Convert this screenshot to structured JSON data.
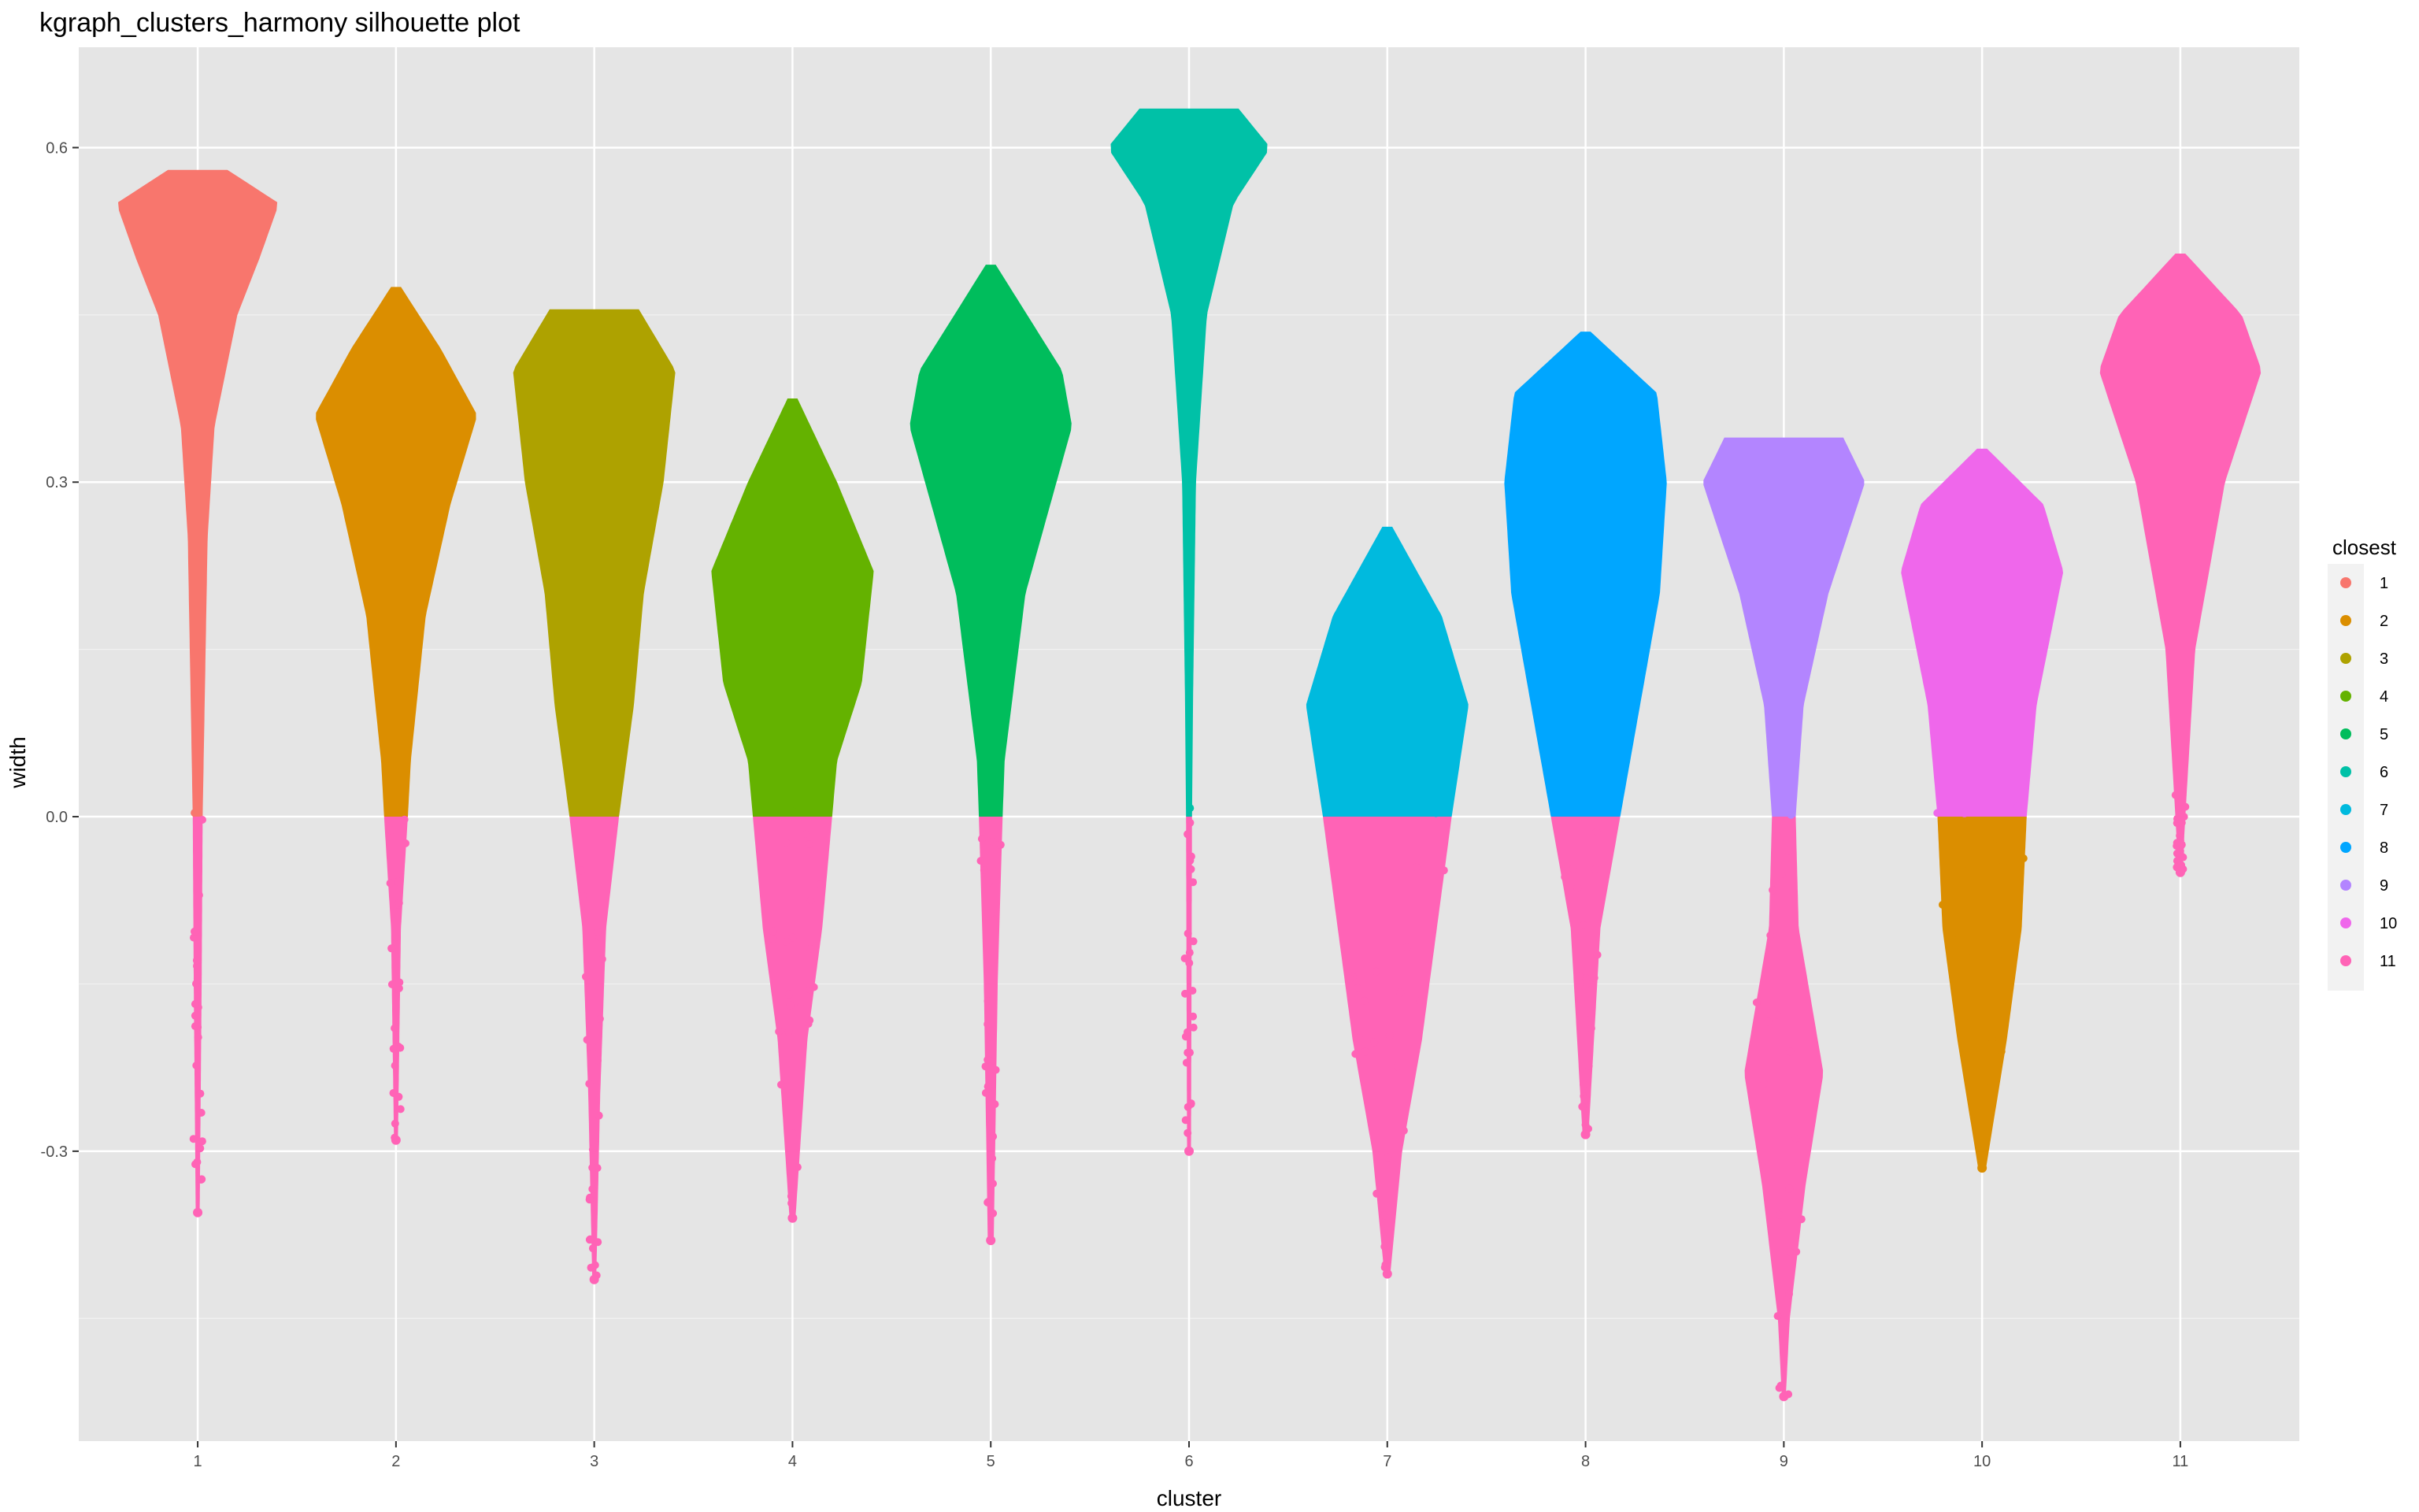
{
  "chart_data": {
    "type": "violin-beeswarm",
    "title": "kgraph_clusters_harmony silhouette plot",
    "xlabel": "cluster",
    "ylabel": "width",
    "categories": [
      "1",
      "2",
      "3",
      "4",
      "5",
      "6",
      "7",
      "8",
      "9",
      "10",
      "11"
    ],
    "ylim": [
      -0.56,
      0.69
    ],
    "yticks": [
      -0.3,
      0.0,
      0.3,
      0.6
    ],
    "ytick_labels": [
      "-0.3",
      "0.0",
      "0.3",
      "0.6"
    ],
    "grid": true,
    "legend": {
      "title": "closest",
      "position": "right",
      "entries": [
        "1",
        "2",
        "3",
        "4",
        "5",
        "6",
        "7",
        "8",
        "9",
        "10",
        "11"
      ]
    },
    "colors": {
      "1": "#F8766D",
      "2": "#DB8E00",
      "3": "#AEA200",
      "4": "#64B200",
      "5": "#00BD5C",
      "6": "#00C1A7",
      "7": "#00BADE",
      "8": "#00A6FF",
      "9": "#B385FF",
      "10": "#EF67EB",
      "11": "#FF63B6"
    },
    "clusters": [
      {
        "cluster": "1",
        "max": 0.58,
        "min": -0.355,
        "pos_closest": "1",
        "neg_closest": "11",
        "profile": [
          [
            0.58,
            0.3
          ],
          [
            0.55,
            0.82
          ],
          [
            0.5,
            0.62
          ],
          [
            0.45,
            0.4
          ],
          [
            0.35,
            0.17
          ],
          [
            0.25,
            0.1
          ],
          [
            0.1,
            0.07
          ],
          [
            0.0,
            0.05
          ],
          [
            -0.15,
            0.04
          ],
          [
            -0.355,
            0.02
          ]
        ]
      },
      {
        "cluster": "2",
        "max": 0.475,
        "min": -0.29,
        "pos_closest": "2",
        "neg_closest": "11",
        "profile": [
          [
            0.475,
            0.05
          ],
          [
            0.42,
            0.45
          ],
          [
            0.36,
            0.82
          ],
          [
            0.28,
            0.55
          ],
          [
            0.18,
            0.3
          ],
          [
            0.05,
            0.15
          ],
          [
            0.0,
            0.12
          ],
          [
            -0.1,
            0.05
          ],
          [
            -0.29,
            0.02
          ]
        ]
      },
      {
        "cluster": "3",
        "max": 0.455,
        "min": -0.415,
        "pos_closest": "3",
        "neg_closest": "11",
        "profile": [
          [
            0.455,
            0.45
          ],
          [
            0.4,
            0.82
          ],
          [
            0.3,
            0.7
          ],
          [
            0.2,
            0.5
          ],
          [
            0.1,
            0.4
          ],
          [
            0.0,
            0.25
          ],
          [
            -0.1,
            0.12
          ],
          [
            -0.25,
            0.06
          ],
          [
            -0.415,
            0.02
          ]
        ]
      },
      {
        "cluster": "4",
        "max": 0.375,
        "min": -0.36,
        "pos_closest": "4",
        "neg_closest": "11",
        "profile": [
          [
            0.375,
            0.05
          ],
          [
            0.3,
            0.45
          ],
          [
            0.22,
            0.82
          ],
          [
            0.12,
            0.7
          ],
          [
            0.05,
            0.45
          ],
          [
            0.0,
            0.4
          ],
          [
            -0.1,
            0.3
          ],
          [
            -0.2,
            0.15
          ],
          [
            -0.36,
            0.03
          ]
        ]
      },
      {
        "cluster": "5",
        "max": 0.495,
        "min": -0.38,
        "pos_closest": "5",
        "neg_closest": "11",
        "profile": [
          [
            0.495,
            0.05
          ],
          [
            0.4,
            0.72
          ],
          [
            0.35,
            0.82
          ],
          [
            0.2,
            0.35
          ],
          [
            0.05,
            0.14
          ],
          [
            0.0,
            0.12
          ],
          [
            -0.15,
            0.07
          ],
          [
            -0.38,
            0.03
          ]
        ]
      },
      {
        "cluster": "6",
        "max": 0.635,
        "min": -0.3,
        "pos_closest": "6",
        "neg_closest": "11",
        "profile": [
          [
            0.635,
            0.5
          ],
          [
            0.6,
            0.82
          ],
          [
            0.55,
            0.45
          ],
          [
            0.45,
            0.18
          ],
          [
            0.3,
            0.07
          ],
          [
            0.1,
            0.04
          ],
          [
            0.0,
            0.03
          ],
          [
            -0.3,
            0.02
          ]
        ]
      },
      {
        "cluster": "7",
        "max": 0.26,
        "min": -0.41,
        "pos_closest": "7",
        "neg_closest": "11",
        "profile": [
          [
            0.26,
            0.05
          ],
          [
            0.18,
            0.55
          ],
          [
            0.1,
            0.82
          ],
          [
            0.0,
            0.65
          ],
          [
            -0.1,
            0.5
          ],
          [
            -0.2,
            0.35
          ],
          [
            -0.3,
            0.15
          ],
          [
            -0.41,
            0.03
          ]
        ]
      },
      {
        "cluster": "8",
        "max": 0.435,
        "min": -0.285,
        "pos_closest": "8",
        "neg_closest": "11",
        "profile": [
          [
            0.435,
            0.05
          ],
          [
            0.38,
            0.72
          ],
          [
            0.3,
            0.82
          ],
          [
            0.2,
            0.75
          ],
          [
            0.1,
            0.55
          ],
          [
            0.0,
            0.35
          ],
          [
            -0.1,
            0.15
          ],
          [
            -0.285,
            0.03
          ]
        ]
      },
      {
        "cluster": "9",
        "max": 0.34,
        "min": -0.52,
        "pos_closest": "9",
        "neg_closest": "11",
        "profile": [
          [
            0.34,
            0.6
          ],
          [
            0.3,
            0.82
          ],
          [
            0.2,
            0.45
          ],
          [
            0.1,
            0.2
          ],
          [
            0.0,
            0.12
          ],
          [
            -0.1,
            0.15
          ],
          [
            -0.23,
            0.4
          ],
          [
            -0.33,
            0.22
          ],
          [
            -0.45,
            0.06
          ],
          [
            -0.52,
            0.02
          ]
        ]
      },
      {
        "cluster": "10",
        "max": 0.33,
        "min": -0.315,
        "pos_closest": "10",
        "neg_closest": "2",
        "profile": [
          [
            0.33,
            0.05
          ],
          [
            0.28,
            0.62
          ],
          [
            0.22,
            0.82
          ],
          [
            0.1,
            0.55
          ],
          [
            0.0,
            0.45
          ],
          [
            -0.1,
            0.4
          ],
          [
            -0.2,
            0.25
          ],
          [
            -0.315,
            0.04
          ]
        ]
      },
      {
        "cluster": "11",
        "max": 0.505,
        "min": -0.05,
        "pos_closest": "11",
        "neg_closest": "11",
        "profile": [
          [
            0.505,
            0.05
          ],
          [
            0.45,
            0.62
          ],
          [
            0.4,
            0.82
          ],
          [
            0.3,
            0.45
          ],
          [
            0.15,
            0.15
          ],
          [
            0.0,
            0.05
          ],
          [
            -0.05,
            0.02
          ]
        ]
      }
    ]
  }
}
